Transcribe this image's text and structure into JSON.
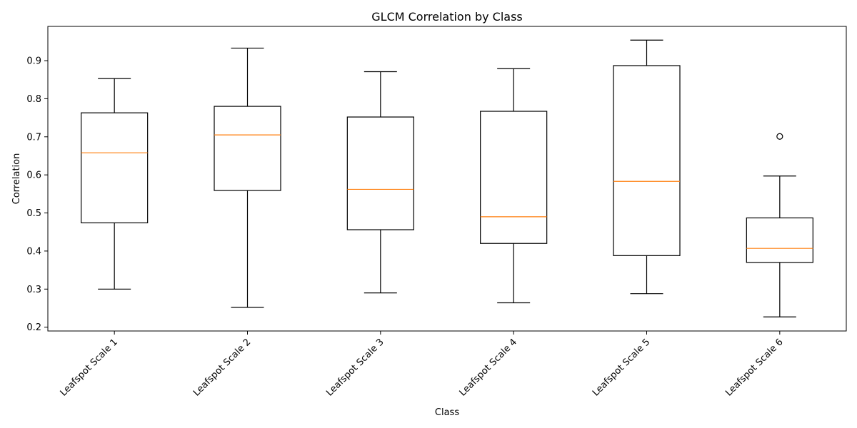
{
  "chart_data": {
    "type": "box",
    "title": "GLCM Correlation by Class",
    "xlabel": "Class",
    "ylabel": "Correlation",
    "ylim": [
      0.19,
      0.99
    ],
    "yticks": [
      0.2,
      0.3,
      0.4,
      0.5,
      0.6,
      0.7,
      0.8,
      0.9
    ],
    "grid": false,
    "median_color": "#ff7f0e",
    "box_color": "#000000",
    "categories": [
      "Leafspot Scale 1",
      "Leafspot Scale 2",
      "Leafspot Scale 3",
      "Leafspot Scale 4",
      "Leafspot Scale 5",
      "Leafspot Scale 6"
    ],
    "boxes": [
      {
        "whisker_low": 0.3,
        "q1": 0.474,
        "median": 0.658,
        "q3": 0.763,
        "whisker_high": 0.853,
        "fliers": []
      },
      {
        "whisker_low": 0.252,
        "q1": 0.559,
        "median": 0.705,
        "q3": 0.78,
        "whisker_high": 0.933,
        "fliers": []
      },
      {
        "whisker_low": 0.29,
        "q1": 0.456,
        "median": 0.562,
        "q3": 0.752,
        "whisker_high": 0.871,
        "fliers": []
      },
      {
        "whisker_low": 0.264,
        "q1": 0.42,
        "median": 0.49,
        "q3": 0.767,
        "whisker_high": 0.879,
        "fliers": []
      },
      {
        "whisker_low": 0.288,
        "q1": 0.388,
        "median": 0.583,
        "q3": 0.887,
        "whisker_high": 0.954,
        "fliers": []
      },
      {
        "whisker_low": 0.227,
        "q1": 0.37,
        "median": 0.407,
        "q3": 0.487,
        "whisker_high": 0.597,
        "fliers": [
          0.701
        ]
      }
    ]
  }
}
